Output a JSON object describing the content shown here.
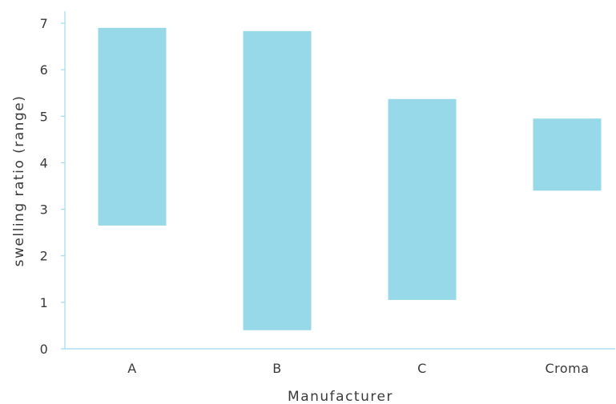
{
  "chart_data": {
    "type": "bar",
    "subtype": "floating-range",
    "title": "",
    "xlabel": "Manufacturer",
    "ylabel": "swelling ratio (range)",
    "categories": [
      "A",
      "B",
      "C",
      "Croma"
    ],
    "series": [
      {
        "low": [
          2.65,
          0.4,
          1.05,
          3.4
        ],
        "high": [
          6.9,
          6.83,
          5.37,
          4.95
        ]
      }
    ],
    "ylim": [
      0,
      7
    ],
    "yticks": [
      "0",
      "1",
      "2",
      "3",
      "4",
      "5",
      "6",
      "7"
    ],
    "grid": false,
    "legend": "none",
    "bar_color": "#98d9e9",
    "axis_color": "#9fdbea"
  }
}
